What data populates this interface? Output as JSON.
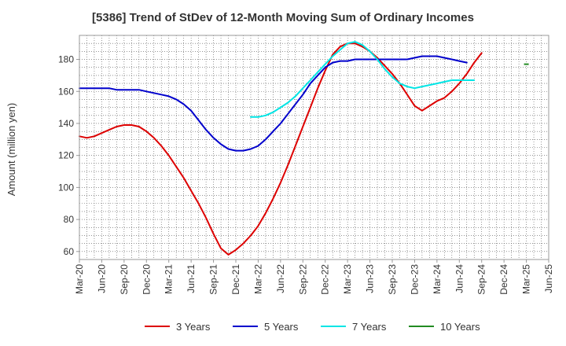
{
  "chart_data": {
    "type": "line",
    "title": "[5386]  Trend of StDev of 12-Month Moving Sum of Ordinary Incomes",
    "xlabel": "",
    "ylabel": "Amount (million yen)",
    "ylim": [
      55,
      195
    ],
    "yticks": [
      60,
      80,
      100,
      120,
      140,
      160,
      180
    ],
    "xlim": [
      "Mar-20",
      "Jun-25"
    ],
    "x_tick_labels": [
      "Mar-20",
      "Jun-20",
      "Sep-20",
      "Dec-20",
      "Mar-21",
      "Jun-21",
      "Sep-21",
      "Dec-21",
      "Mar-22",
      "Jun-22",
      "Sep-22",
      "Dec-22",
      "Mar-23",
      "Jun-23",
      "Sep-23",
      "Dec-23",
      "Mar-24",
      "Jun-24",
      "Sep-24",
      "Dec-24",
      "Mar-25",
      "Jun-25"
    ],
    "grid": true,
    "legend_position": "bottom",
    "series": [
      {
        "name": "3 Years",
        "color": "#dd0000",
        "start": "Mar-20",
        "values": [
          132,
          131,
          132,
          134,
          136,
          138,
          139,
          139,
          138,
          135,
          131,
          126,
          120,
          113,
          106,
          98,
          90,
          81,
          71,
          62,
          58,
          61,
          65,
          70,
          76,
          84,
          93,
          103,
          114,
          126,
          138,
          150,
          162,
          173,
          183,
          188,
          190,
          190,
          188,
          185,
          181,
          176,
          171,
          165,
          158,
          151,
          148,
          151,
          154,
          156,
          160,
          165,
          171,
          178,
          184
        ]
      },
      {
        "name": "5 Years",
        "color": "#0000cc",
        "start": "Mar-20",
        "values": [
          162,
          162,
          162,
          162,
          162,
          161,
          161,
          161,
          161,
          160,
          159,
          158,
          157,
          155,
          152,
          148,
          142,
          136,
          131,
          127,
          124,
          123,
          123,
          124,
          126,
          130,
          135,
          140,
          146,
          152,
          158,
          165,
          170,
          175,
          178,
          179,
          179,
          180,
          180,
          180,
          180,
          180,
          180,
          180,
          180,
          181,
          182,
          182,
          182,
          181,
          180,
          179,
          178
        ]
      },
      {
        "name": "7 Years",
        "color": "#00e5e5",
        "start": "Feb-22",
        "values": [
          144,
          144,
          145,
          147,
          150,
          153,
          157,
          162,
          167,
          172,
          177,
          182,
          186,
          190,
          191,
          189,
          185,
          180,
          174,
          169,
          165,
          163,
          162,
          163,
          164,
          165,
          166,
          167,
          167,
          167,
          167
        ]
      },
      {
        "name": "10 Years",
        "color": "#228b22",
        "start": "Mar-25",
        "values": [
          177
        ]
      }
    ]
  }
}
